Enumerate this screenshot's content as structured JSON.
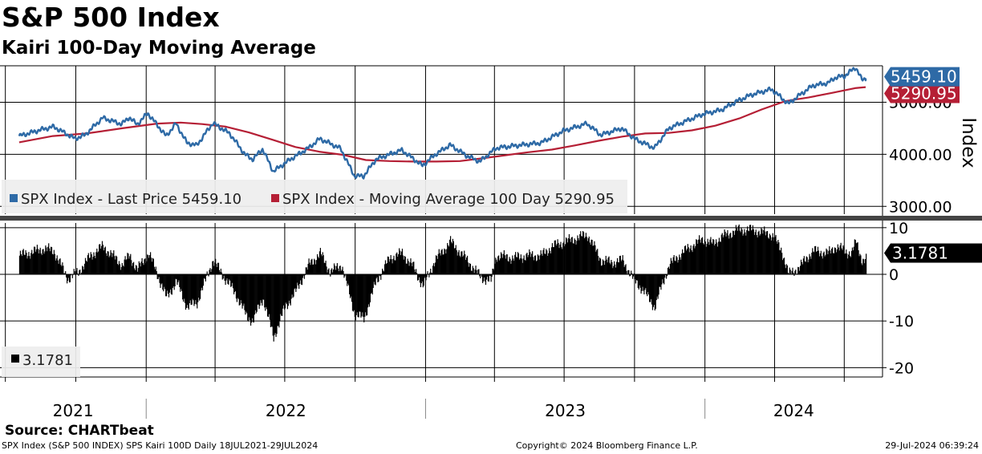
{
  "header": {
    "title": "S&P 500 Index",
    "subtitle": "Kairi 100-Day Moving Average"
  },
  "footer": {
    "source": "Source: CHARTbeat",
    "description": "SPX Index (S&P 500 INDEX) SPS Kairi 100D  Daily 18JUL2021-29JUL2024",
    "copyright": "Copyright© 2024 Bloomberg Finance L.P.",
    "timestamp": "29-Jul-2024 06:39:24"
  },
  "colors": {
    "price": "#2e6aa6",
    "moving_average": "#b51f35",
    "kairi": "#000000",
    "grid": "#000000",
    "legend_bg": "#eeeeee"
  },
  "chart_data": [
    {
      "type": "line",
      "ylabel": "Index",
      "ylim": [
        2850,
        5700
      ],
      "yticks": [
        3000,
        4000,
        5000
      ],
      "ytick_labels": [
        "3000.00",
        "4000.00",
        "5000.00"
      ],
      "x_years": [
        "2021",
        "2022",
        "2023",
        "2024"
      ],
      "legend_placement": "bottom-left",
      "legend": [
        {
          "label": "SPX Index - Last Price 5459.10",
          "color": "#2e6aa6"
        },
        {
          "label": "SPX Index - Moving Average 100 Day 5290.95",
          "color": "#b51f35"
        }
      ],
      "last_value_labels": [
        {
          "text": "5459.10",
          "value": 5459.1,
          "color": "#2e6aa6"
        },
        {
          "text": "5290.95",
          "value": 5290.95,
          "color": "#b51f35"
        }
      ],
      "series": [
        {
          "name": "SPX Index - Last Price",
          "color": "#2e6aa6",
          "x": [
            "2021-07-19",
            "2021-08-16",
            "2021-09-02",
            "2021-09-30",
            "2021-10-13",
            "2021-11-05",
            "2021-11-30",
            "2021-12-10",
            "2021-12-20",
            "2022-01-03",
            "2022-01-27",
            "2022-02-09",
            "2022-02-23",
            "2022-03-08",
            "2022-03-29",
            "2022-04-20",
            "2022-05-10",
            "2022-05-20",
            "2022-06-02",
            "2022-06-16",
            "2022-07-08",
            "2022-08-01",
            "2022-08-16",
            "2022-09-12",
            "2022-09-30",
            "2022-10-12",
            "2022-10-28",
            "2022-11-15",
            "2022-12-01",
            "2022-12-28",
            "2023-01-13",
            "2023-02-02",
            "2023-02-24",
            "2023-03-13",
            "2023-04-03",
            "2023-05-01",
            "2023-06-01",
            "2023-06-30",
            "2023-07-31",
            "2023-08-18",
            "2023-09-14",
            "2023-10-02",
            "2023-10-27",
            "2023-11-15",
            "2023-12-01",
            "2023-12-29",
            "2024-01-22",
            "2024-02-12",
            "2024-03-01",
            "2024-03-28",
            "2024-04-19",
            "2024-05-03",
            "2024-05-21",
            "2024-06-10",
            "2024-06-20",
            "2024-07-01",
            "2024-07-16",
            "2024-07-24",
            "2024-07-29"
          ],
          "values": [
            4350,
            4470,
            4530,
            4300,
            4370,
            4700,
            4580,
            4710,
            4570,
            4790,
            4350,
            4590,
            4225,
            4170,
            4600,
            4400,
            4000,
            3900,
            4100,
            3670,
            3900,
            4120,
            4300,
            4110,
            3585,
            3580,
            3900,
            4000,
            4080,
            3780,
            3990,
            4180,
            3970,
            3860,
            4120,
            4170,
            4220,
            4450,
            4590,
            4370,
            4500,
            4290,
            4120,
            4500,
            4600,
            4770,
            4850,
            5020,
            5140,
            5250,
            4970,
            5130,
            5320,
            5370,
            5480,
            5500,
            5670,
            5430,
            5459.1
          ]
        },
        {
          "name": "SPX Index - Moving Average 100 Day",
          "color": "#b51f35",
          "x": [
            "2021-07-19",
            "2021-09-01",
            "2021-10-15",
            "2021-12-01",
            "2022-01-15",
            "2022-02-15",
            "2022-03-15",
            "2022-04-15",
            "2022-05-15",
            "2022-06-15",
            "2022-07-15",
            "2022-08-15",
            "2022-09-15",
            "2022-10-15",
            "2022-11-15",
            "2022-12-15",
            "2023-01-15",
            "2023-02-15",
            "2023-03-15",
            "2023-04-15",
            "2023-05-15",
            "2023-06-15",
            "2023-07-15",
            "2023-08-15",
            "2023-09-15",
            "2023-10-15",
            "2023-11-15",
            "2023-12-15",
            "2024-01-15",
            "2024-02-15",
            "2024-03-15",
            "2024-04-15",
            "2024-05-15",
            "2024-06-15",
            "2024-07-15",
            "2024-07-29"
          ],
          "values": [
            4230,
            4350,
            4400,
            4500,
            4590,
            4610,
            4580,
            4530,
            4420,
            4280,
            4140,
            4050,
            3990,
            3890,
            3870,
            3860,
            3860,
            3870,
            3920,
            3980,
            4040,
            4090,
            4170,
            4260,
            4340,
            4400,
            4410,
            4460,
            4550,
            4690,
            4860,
            5020,
            5090,
            5180,
            5270,
            5290.95
          ]
        }
      ]
    },
    {
      "type": "bar",
      "ylabel": "",
      "ylim": [
        -22,
        11
      ],
      "yticks": [
        10,
        0,
        -10,
        -20
      ],
      "ytick_labels": [
        "10",
        "0",
        "-10",
        "-20"
      ],
      "legend_placement": "bottom-left",
      "legend": [
        {
          "label": "3.1781",
          "color": "#000000"
        }
      ],
      "last_value_labels": [
        {
          "text": "3.1781",
          "value": 3.1781,
          "color": "#000000"
        }
      ],
      "series": [
        {
          "name": "SPS Kairi 100D",
          "color": "#000000",
          "x": [
            "2021-07-19",
            "2021-08-20",
            "2021-09-02",
            "2021-09-20",
            "2021-10-04",
            "2021-10-20",
            "2021-11-05",
            "2021-11-30",
            "2021-12-10",
            "2021-12-20",
            "2022-01-04",
            "2022-01-14",
            "2022-01-27",
            "2022-02-09",
            "2022-02-23",
            "2022-03-08",
            "2022-03-29",
            "2022-04-12",
            "2022-04-27",
            "2022-05-12",
            "2022-05-20",
            "2022-06-02",
            "2022-06-16",
            "2022-07-01",
            "2022-07-14",
            "2022-08-01",
            "2022-08-16",
            "2022-08-29",
            "2022-09-13",
            "2022-09-30",
            "2022-10-12",
            "2022-10-28",
            "2022-11-15",
            "2022-12-01",
            "2022-12-16",
            "2022-12-28",
            "2023-01-06",
            "2023-01-13",
            "2023-02-02",
            "2023-02-24",
            "2023-03-13",
            "2023-03-27",
            "2023-04-03",
            "2023-04-25",
            "2023-05-15",
            "2023-06-01",
            "2023-06-15",
            "2023-07-03",
            "2023-07-31",
            "2023-08-18",
            "2023-09-01",
            "2023-09-15",
            "2023-09-29",
            "2023-10-10",
            "2023-10-27",
            "2023-11-06",
            "2023-11-15",
            "2023-12-01",
            "2023-12-14",
            "2023-12-29",
            "2024-01-11",
            "2024-01-22",
            "2024-02-05",
            "2024-02-12",
            "2024-03-01",
            "2024-03-15",
            "2024-03-28",
            "2024-04-10",
            "2024-04-19",
            "2024-05-03",
            "2024-05-15",
            "2024-05-21",
            "2024-06-10",
            "2024-06-20",
            "2024-07-01",
            "2024-07-10",
            "2024-07-16",
            "2024-07-24",
            "2024-07-29"
          ],
          "values": [
            4.0,
            5.5,
            5.0,
            -1.0,
            0.5,
            4.0,
            6.0,
            2.0,
            4.0,
            1.0,
            4.5,
            0.5,
            -5.0,
            -1.5,
            -7.0,
            -6.0,
            3.0,
            -0.5,
            -4.0,
            -9.0,
            -10.0,
            -5.0,
            -13.5,
            -7.0,
            -4.0,
            2.0,
            4.5,
            0.5,
            2.0,
            -8.5,
            -9.5,
            -1.5,
            3.5,
            4.5,
            1.5,
            -2.5,
            0.5,
            3.0,
            7.0,
            3.0,
            -0.5,
            -1.5,
            4.0,
            3.5,
            4.0,
            4.0,
            6.0,
            7.0,
            8.5,
            3.0,
            2.5,
            3.0,
            -1.0,
            -3.0,
            -7.0,
            -2.0,
            2.0,
            4.5,
            6.0,
            7.5,
            6.5,
            8.0,
            9.0,
            9.5,
            9.5,
            9.0,
            8.5,
            5.0,
            0.0,
            1.5,
            4.0,
            5.0,
            4.5,
            6.0,
            5.0,
            4.5,
            7.0,
            3.0,
            3.1781
          ]
        }
      ]
    }
  ]
}
